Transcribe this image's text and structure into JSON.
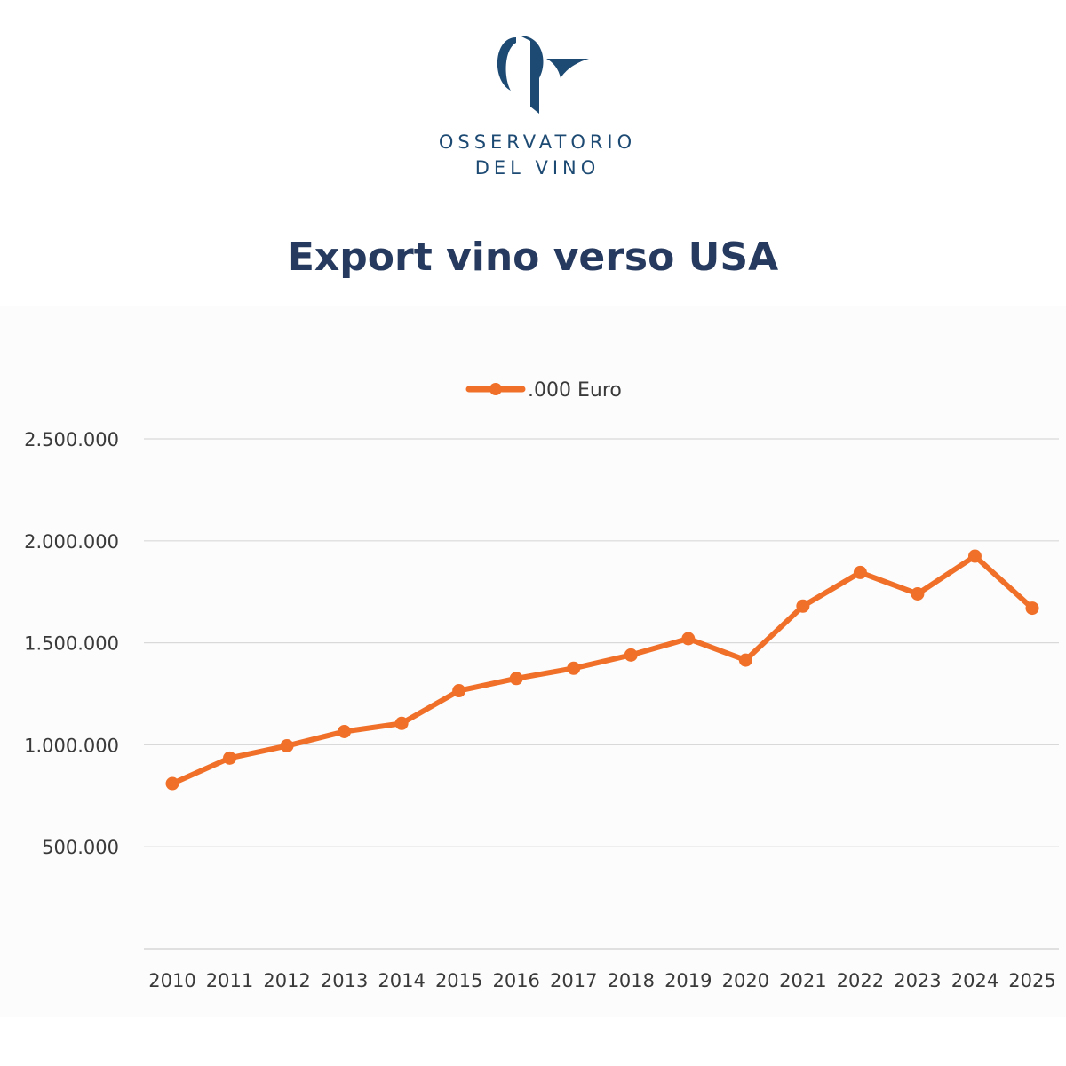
{
  "logo": {
    "line1": "OSSERVATORIO",
    "line2": "DEL VINO",
    "color": "#1d4a73"
  },
  "chart_data": {
    "type": "line",
    "title": "Export vino verso USA",
    "xlabel": "",
    "ylabel": "",
    "x": [
      "2010",
      "2011",
      "2012",
      "2013",
      "2014",
      "2015",
      "2016",
      "2017",
      "2018",
      "2019",
      "2020",
      "2021",
      "2022",
      "2023",
      "2024",
      "2025"
    ],
    "series": [
      {
        "name": ".000 Euro",
        "color": "#f07029",
        "values": [
          810000,
          935000,
          995000,
          1065000,
          1105000,
          1265000,
          1325000,
          1375000,
          1440000,
          1520000,
          1415000,
          1680000,
          1845000,
          1740000,
          1925000,
          1670000
        ]
      }
    ],
    "ylim": [
      0,
      2500000
    ],
    "yticks": [
      {
        "value": 500000,
        "label": "500.000"
      },
      {
        "value": 1000000,
        "label": "1.000.000"
      },
      {
        "value": 1500000,
        "label": "1.500.000"
      },
      {
        "value": 2000000,
        "label": "2.000.000"
      },
      {
        "value": 2500000,
        "label": "2.500.000"
      }
    ],
    "grid": true,
    "legend_position": "top"
  }
}
